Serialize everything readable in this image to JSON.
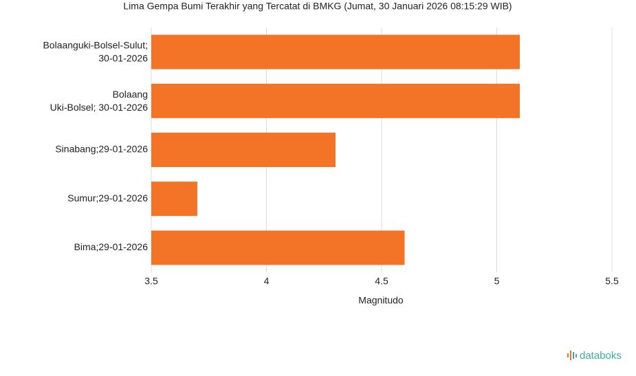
{
  "chart_data": {
    "type": "bar",
    "orientation": "horizontal",
    "title": "Lima Gempa Bumi Terakhir yang Tercatat di BMKG (Jumat, 30 Januari 2026 08:15:29 WIB)",
    "categories": [
      "Bolaanguki-Bolsel-Sulut; 30-01-2026",
      "Bolaang Uki-Bolsel; 30-01-2026",
      "Sinabang;29-01-2026",
      "Sumur;29-01-2026",
      "Bima;29-01-2026"
    ],
    "values": [
      5.1,
      5.1,
      4.3,
      3.7,
      4.6
    ],
    "color": "#f37327",
    "xlabel": "Magnitudo",
    "xlim": [
      3.5,
      5.5
    ],
    "xticks": [
      3.5,
      4,
      4.5,
      5,
      5.5
    ],
    "grid": true
  },
  "brand": "databoks"
}
